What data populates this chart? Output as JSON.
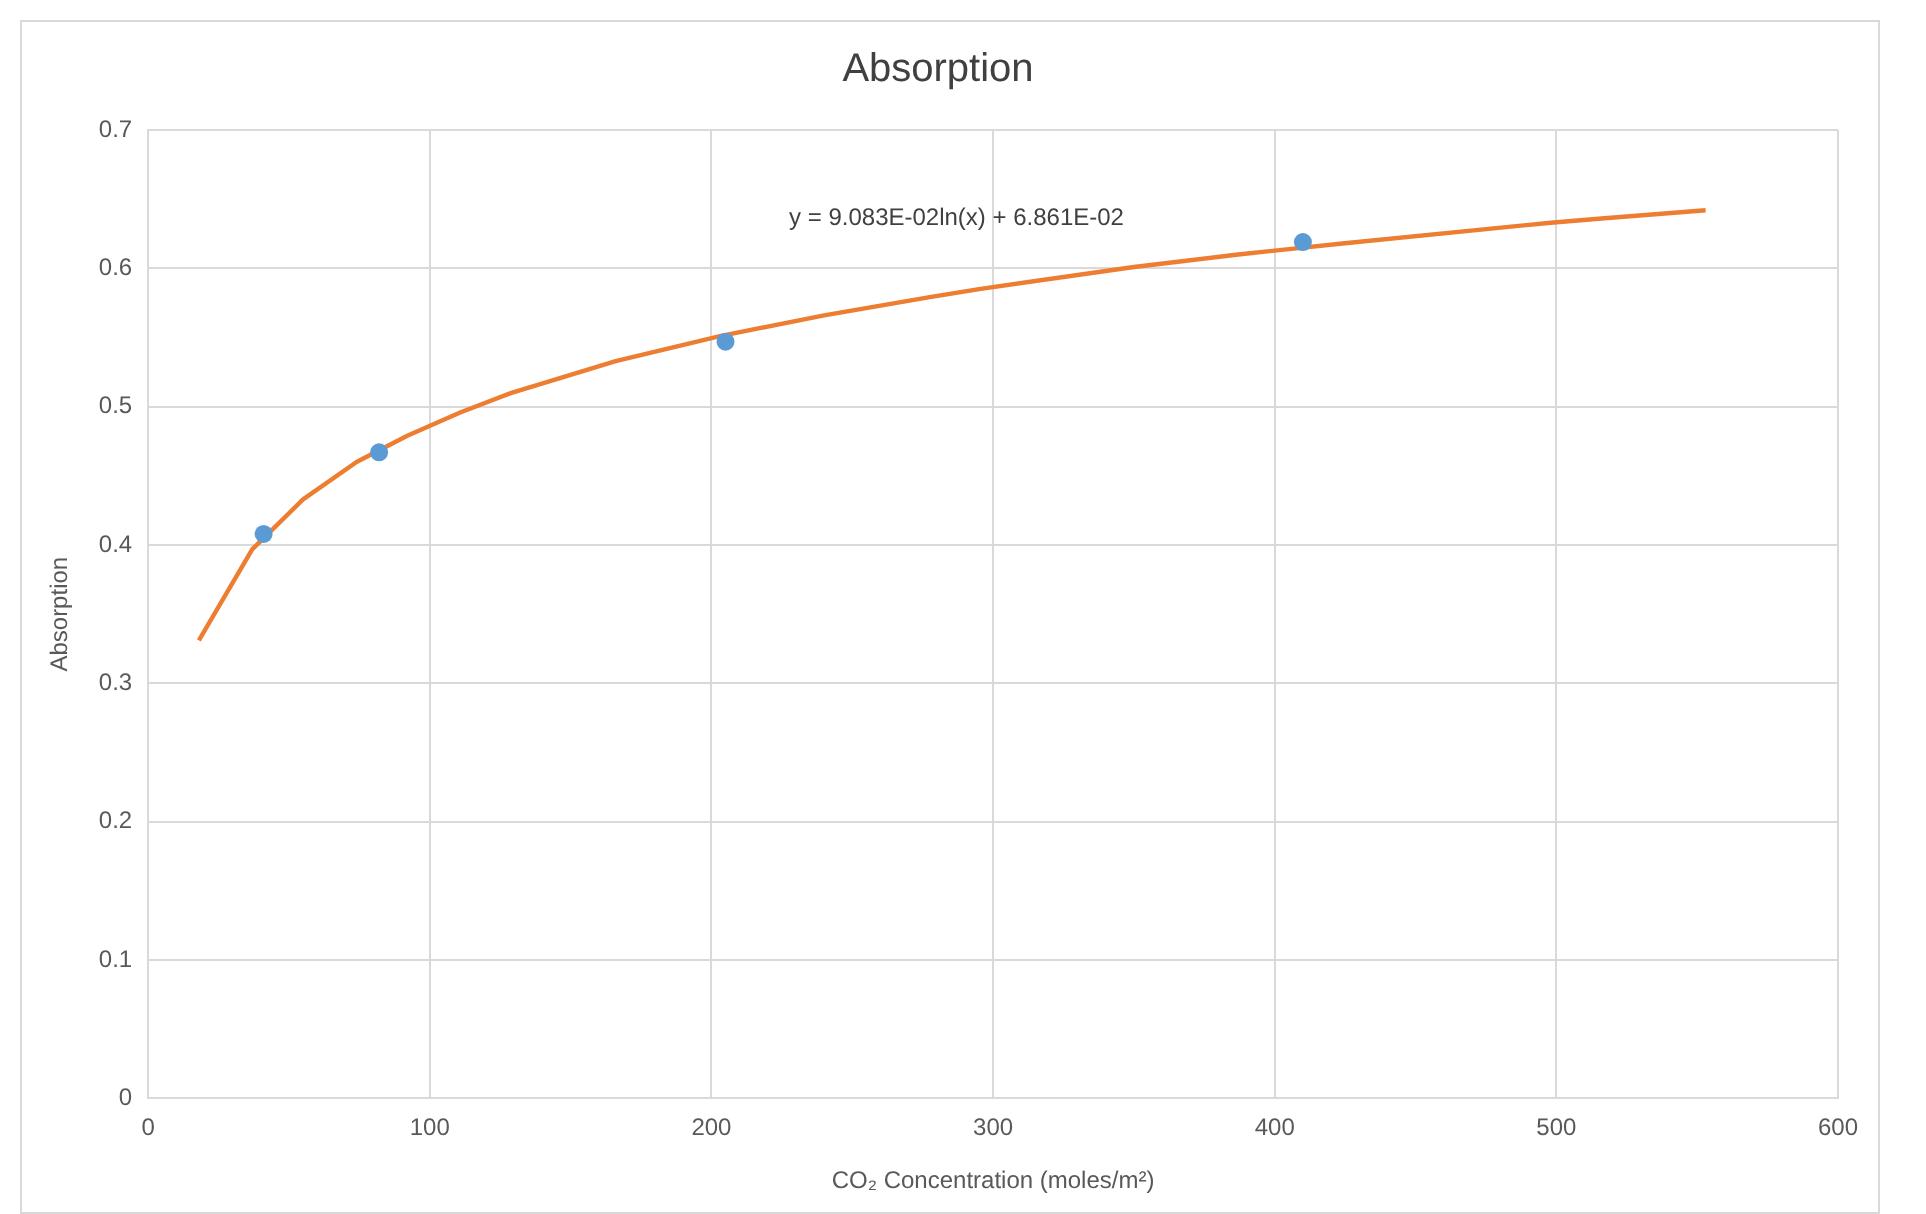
{
  "chart_data": {
    "type": "scatter",
    "title": "Absorption",
    "xlabel": "CO₂ Concentration (moles/m²)",
    "ylabel": "Absorption",
    "xlim": [
      0,
      600
    ],
    "xticks": [
      0,
      100,
      200,
      300,
      400,
      500,
      600
    ],
    "ylim": [
      0,
      0.7
    ],
    "yticks": [
      0,
      0.1,
      0.2,
      0.3,
      0.4,
      0.5,
      0.6,
      0.7
    ],
    "grid": true,
    "annotations": [
      "y = 9.083E-02ln(x) + 6.861E-02"
    ],
    "series": [
      {
        "type": "scatter",
        "color": "#5b9bd5",
        "marker": "circle",
        "x": [
          41,
          82,
          205,
          410
        ],
        "values": [
          0.408,
          0.467,
          0.547,
          0.619
        ]
      },
      {
        "type": "line",
        "color": "#ed7d31",
        "marker": "none",
        "line_style": "solid",
        "x": [
          18,
          37,
          55,
          74,
          92,
          111,
          129,
          166,
          203,
          240,
          277,
          295,
          350,
          387,
          424,
          498,
          516,
          553
        ],
        "values": [
          0.331,
          0.397,
          0.433,
          0.46,
          0.479,
          0.496,
          0.51,
          0.533,
          0.551,
          0.566,
          0.579,
          0.585,
          0.601,
          0.61,
          0.618,
          0.633,
          0.636,
          0.642
        ]
      }
    ]
  }
}
